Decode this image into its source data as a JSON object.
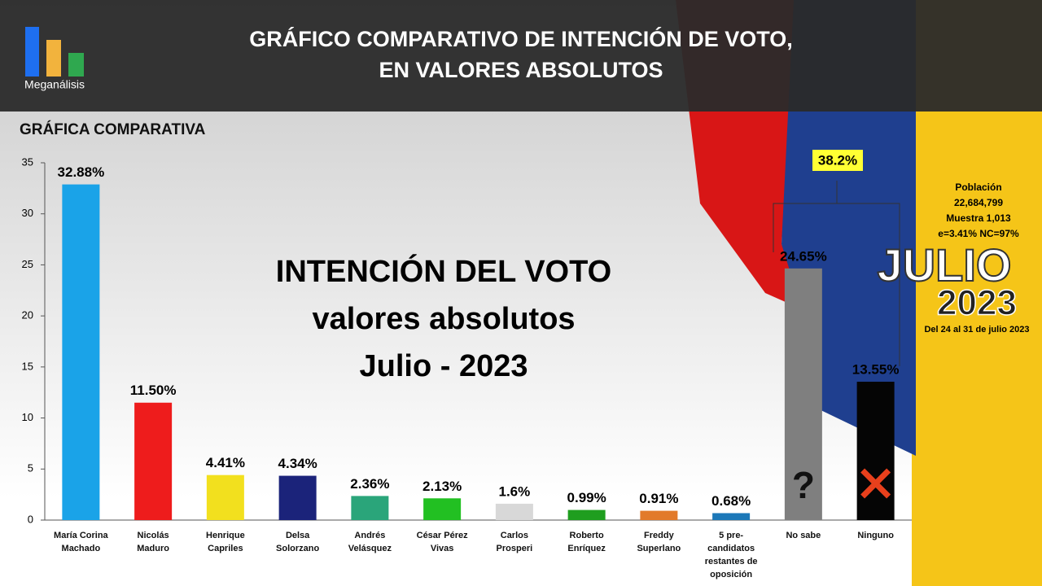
{
  "header": {
    "brand": "Meganálisis",
    "title_line1": "GRÁFICO COMPARATIVO DE INTENCIÓN DE VOTO,",
    "title_line2": "EN VALORES ABSOLUTOS"
  },
  "chart_data": {
    "type": "bar",
    "subtitle": "GRÁFICA COMPARATIVA",
    "categories": [
      "María Corina Machado",
      "Nicolás Maduro",
      "Henrique Capriles",
      "Delsa Solorzano",
      "Andrés Velásquez",
      "César Pérez Vivas",
      "Carlos Prosperi",
      "Roberto Enríquez",
      "Freddy Superlano",
      "5 pre-candidatos restantes de oposición",
      "No sabe",
      "Ninguno"
    ],
    "values": [
      32.88,
      11.5,
      4.41,
      4.34,
      2.36,
      2.13,
      1.6,
      0.99,
      0.91,
      0.68,
      24.65,
      13.55
    ],
    "value_labels": [
      "32.88%",
      "11.50%",
      "4.41%",
      "4.34%",
      "2.36%",
      "2.13%",
      "1.6%",
      "0.99%",
      "0.91%",
      "0.68%",
      "24.65%",
      "13.55%"
    ],
    "colors": [
      "#1aa3e8",
      "#ee1c1c",
      "#f2e01e",
      "#1b237a",
      "#2aa57a",
      "#22c022",
      "#d8d8d8",
      "#1f9e1f",
      "#e27a2a",
      "#1c78b8",
      "#7f7f7f",
      "#050505"
    ],
    "ylim": [
      0,
      35
    ],
    "yticks": [
      0,
      5,
      10,
      15,
      20,
      25,
      30,
      35
    ],
    "annotations": {
      "center_line1": "INTENCIÓN DEL VOTO",
      "center_line2": "valores absolutos",
      "center_line3": "Julio - 2023",
      "combined": "38.2%",
      "no_sabe_mark": "?"
    }
  },
  "info": {
    "poblacion": "Población",
    "poblacion_value": "22,684,799",
    "muestra": "Muestra 1,013",
    "error": "e=3.41%  NC=97%",
    "month": "JULIO",
    "year": "2023",
    "dates": "Del 24 al 31 de julio 2023"
  }
}
